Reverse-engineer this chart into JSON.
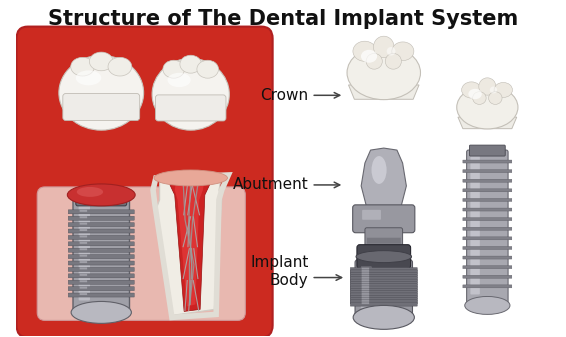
{
  "title": "Structure of The Dental Implant System",
  "title_fontsize": 15,
  "title_fontweight": "bold",
  "background_color": "#ffffff",
  "labels": {
    "crown": "Crown",
    "abutment": "Abutment",
    "implant_body": "Implant\nBody"
  },
  "label_fontsize": 11,
  "arrow_color": "#444444",
  "text_color": "#111111",
  "gum_red": "#cc2a20",
  "gum_dark": "#b02020",
  "bone_pink": "#e8b8b0",
  "implant_gray": "#909090",
  "implant_dark": "#606060",
  "implant_light": "#c0c0c0",
  "tooth_white": "#f2f0ec",
  "tooth_shadow": "#d8d4cc"
}
